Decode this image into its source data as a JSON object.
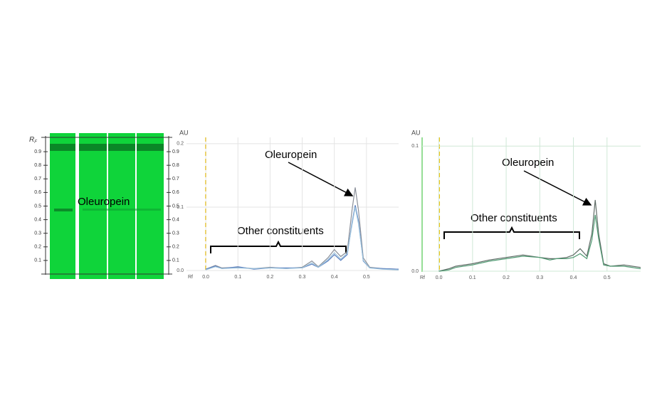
{
  "plate": {
    "axis_label": "R",
    "axis_label_subscript": "F",
    "ticks": [
      0.1,
      0.2,
      0.3,
      0.4,
      0.5,
      0.6,
      0.7,
      0.8,
      0.9
    ],
    "annotation": "Oleuropein"
  },
  "chart_data": [
    {
      "type": "line",
      "y_label": "AU",
      "x_label": "Rf",
      "annotations": [
        "Oleuropein",
        "Other constituents"
      ],
      "grid": true,
      "xlim": [
        -0.06,
        0.6
      ],
      "ylim": [
        0,
        0.21
      ],
      "xticks": [
        {
          "value": 0,
          "label": "0.0"
        },
        0.1,
        0.2,
        0.3,
        0.4,
        0.5
      ],
      "yticks": [
        {
          "value": 0,
          "label": "0.0"
        },
        0.1,
        0.2
      ],
      "x": [
        0,
        0.03,
        0.05,
        0.1,
        0.15,
        0.2,
        0.25,
        0.3,
        0.33,
        0.35,
        0.38,
        0.4,
        0.42,
        0.44,
        0.455,
        0.465,
        0.475,
        0.49,
        0.51,
        0.55,
        0.6
      ],
      "series": [
        {
          "color": "#8a8f99",
          "values": [
            0.002,
            0.008,
            0.004,
            0.005,
            0.003,
            0.005,
            0.003,
            0.005,
            0.015,
            0.006,
            0.02,
            0.033,
            0.022,
            0.03,
            0.095,
            0.131,
            0.095,
            0.02,
            0.005,
            0.003,
            0.002
          ]
        },
        {
          "color": "#5b7fc0",
          "values": [
            0.002,
            0.007,
            0.003,
            0.006,
            0.002,
            0.004,
            0.004,
            0.004,
            0.01,
            0.005,
            0.015,
            0.025,
            0.016,
            0.025,
            0.075,
            0.103,
            0.078,
            0.015,
            0.004,
            0.003,
            0.002
          ]
        },
        {
          "color": "#9cc3dd",
          "values": [
            0.001,
            0.006,
            0.003,
            0.004,
            0.003,
            0.004,
            0.003,
            0.004,
            0.012,
            0.005,
            0.017,
            0.028,
            0.018,
            0.027,
            0.072,
            0.1,
            0.074,
            0.016,
            0.004,
            0.002,
            0.001
          ]
        }
      ]
    },
    {
      "type": "line",
      "y_label": "AU",
      "x_label": "Rf",
      "annotations": [
        "Oleuropein",
        "Other constituents"
      ],
      "grid": true,
      "xlim": [
        -0.05,
        0.6
      ],
      "ylim": [
        0,
        0.107
      ],
      "xticks": [
        {
          "value": 0,
          "label": "0.0"
        },
        0.1,
        0.2,
        0.3,
        0.4,
        0.5
      ],
      "yticks": [
        {
          "value": 0,
          "label": "0.0"
        },
        0.1
      ],
      "x": [
        0,
        0.03,
        0.05,
        0.1,
        0.15,
        0.2,
        0.25,
        0.3,
        0.33,
        0.35,
        0.38,
        0.4,
        0.42,
        0.44,
        0.455,
        0.465,
        0.475,
        0.49,
        0.51,
        0.55,
        0.6
      ],
      "series": [
        {
          "color": "#5f6b66",
          "values": [
            0,
            0.002,
            0.004,
            0.006,
            0.009,
            0.011,
            0.013,
            0.011,
            0.01,
            0.01,
            0.011,
            0.013,
            0.018,
            0.012,
            0.03,
            0.057,
            0.03,
            0.006,
            0.004,
            0.005,
            0.003
          ]
        },
        {
          "color": "#4f9a72",
          "values": [
            0,
            0.001,
            0.003,
            0.005,
            0.008,
            0.01,
            0.012,
            0.011,
            0.009,
            0.01,
            0.01,
            0.011,
            0.014,
            0.01,
            0.025,
            0.045,
            0.026,
            0.005,
            0.004,
            0.004,
            0.002
          ]
        }
      ]
    }
  ]
}
